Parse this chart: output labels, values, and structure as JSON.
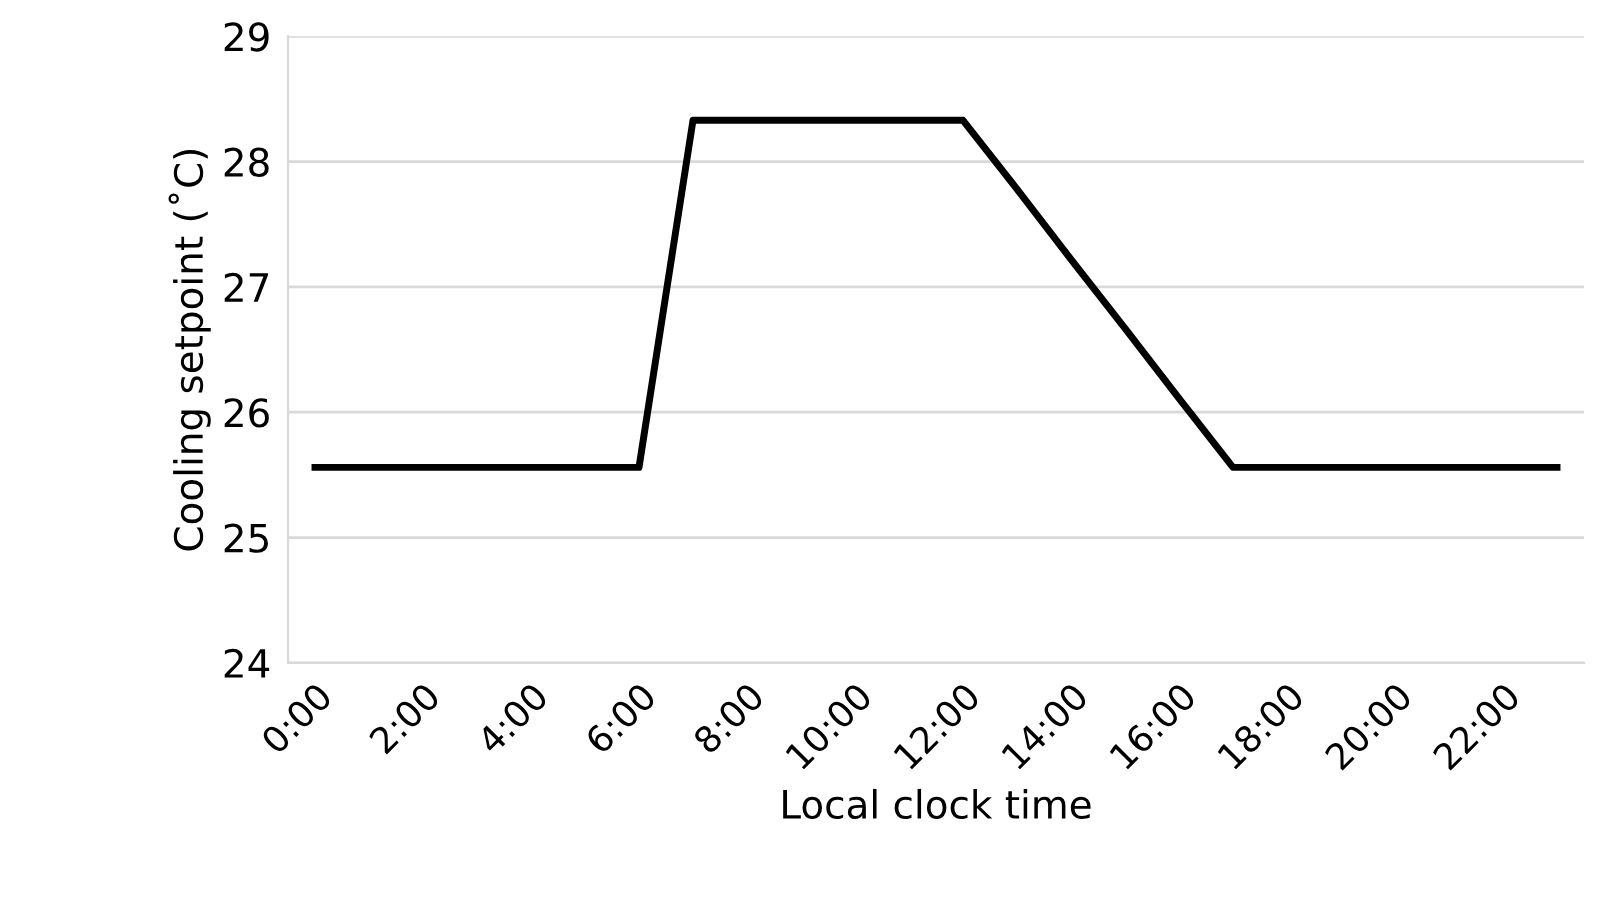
{
  "chart_data": {
    "type": "line",
    "xlabel": "Local clock time",
    "ylabel": "Cooling setpoint (˚C)",
    "x": [
      0,
      1,
      2,
      3,
      4,
      5,
      6,
      7,
      8,
      9,
      10,
      11,
      12,
      13,
      14,
      15,
      16,
      17,
      18,
      19,
      20,
      21,
      22,
      23
    ],
    "series": [
      {
        "color": "#000000",
        "values": [
          25.56,
          25.56,
          25.56,
          25.56,
          25.56,
          25.56,
          25.56,
          28.33,
          28.33,
          28.33,
          28.33,
          28.33,
          28.33,
          27.78,
          27.22,
          26.67,
          26.11,
          25.56,
          25.56,
          25.56,
          25.56,
          25.56,
          25.56,
          25.56
        ]
      }
    ],
    "xlim": [
      -0.5,
      23.5
    ],
    "xticks": [
      {
        "value": 0,
        "label": "0:00"
      },
      {
        "value": 2,
        "label": "2:00"
      },
      {
        "value": 4,
        "label": "4:00"
      },
      {
        "value": 6,
        "label": "6:00"
      },
      {
        "value": 8,
        "label": "8:00"
      },
      {
        "value": 10,
        "label": "10:00"
      },
      {
        "value": 12,
        "label": "12:00"
      },
      {
        "value": 14,
        "label": "14:00"
      },
      {
        "value": 16,
        "label": "16:00"
      },
      {
        "value": 18,
        "label": "18:00"
      },
      {
        "value": 20,
        "label": "20:00"
      },
      {
        "value": 22,
        "label": "22:00"
      }
    ],
    "ylim": [
      24,
      29
    ],
    "yticks": [
      24,
      25,
      26,
      27,
      28,
      29
    ],
    "grid": "y",
    "legend": false,
    "marker": "none",
    "line_style": "solid"
  }
}
